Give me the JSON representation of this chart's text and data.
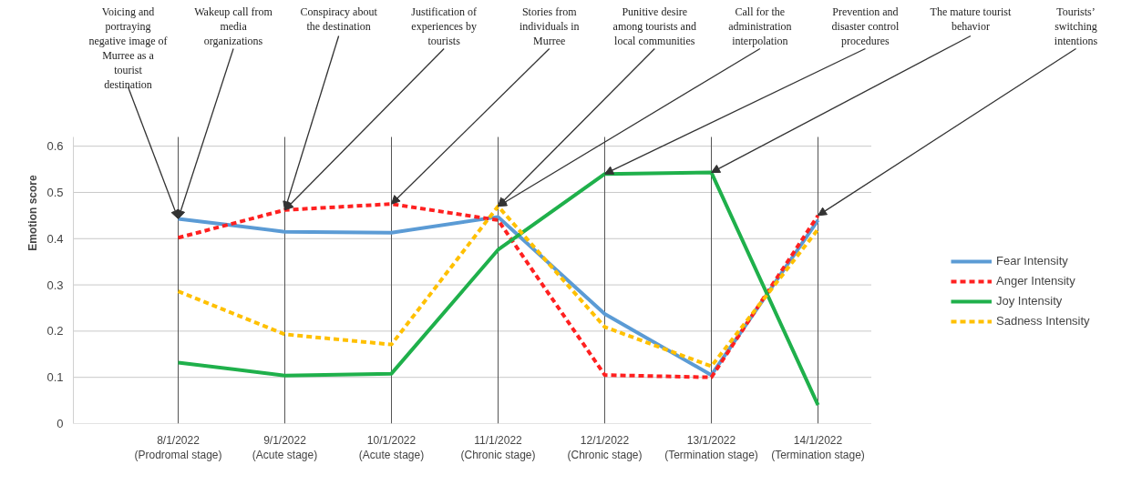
{
  "chart_data": {
    "type": "line",
    "ylabel": "Emotion score",
    "categories": [
      "8/1/2022 (Prodromal stage)",
      "9/1/2022 (Acute stage)",
      "10/1/2022(Acute stage)",
      "11/1/2022(Chronic stage)",
      "12/1/2022(Chronic stage)",
      "13/1/2022(Termination stage)",
      "14/1/2022(Termination stage)"
    ],
    "series": [
      {
        "name": "Fear Intensity",
        "color": "#5b9bd5",
        "line_style": "solid",
        "values": [
          0.443,
          0.415,
          0.413,
          0.447,
          0.237,
          0.105,
          0.44
        ]
      },
      {
        "name": "Anger Intensity",
        "color": "#ff2020",
        "line_style": "dashed",
        "values": [
          0.402,
          0.462,
          0.475,
          0.44,
          0.105,
          0.1,
          0.45
        ]
      },
      {
        "name": "Joy Intensity",
        "color": "#1fb04b",
        "line_style": "solid",
        "values": [
          0.132,
          0.104,
          0.108,
          0.376,
          0.54,
          0.543,
          0.04
        ]
      },
      {
        "name": "Sadness Intensity",
        "color": "#ffc000",
        "line_style": "dashed",
        "values": [
          0.286,
          0.193,
          0.171,
          0.47,
          0.209,
          0.124,
          0.42
        ]
      }
    ],
    "ylim": [
      0,
      0.62
    ],
    "yticks": [
      0,
      0.1,
      0.2,
      0.3,
      0.4,
      0.5,
      0.6
    ],
    "grid": true,
    "legend": "right",
    "marker": "none",
    "annotations": [
      {
        "text": "Voicing and portraying negative image of Murree as a tourist destination",
        "x": "8/1/2022 (Prodromal stage)",
        "y": 0.443
      },
      {
        "text": "Wakeup call from media organizations",
        "x": "8/1/2022 (Prodromal stage)",
        "y": 0.443
      },
      {
        "text": "Conspiracy about the destination",
        "x": "9/1/2022 (Acute stage)",
        "y": 0.462
      },
      {
        "text": "Justification of experiences by tourists",
        "x": "9/1/2022 (Acute stage)",
        "y": 0.462
      },
      {
        "text": "Stories from individuals in Murree",
        "x": "10/1/2022(Acute stage)",
        "y": 0.475
      },
      {
        "text": "Punitive desire among tourists and local communities",
        "x": "11/1/2022(Chronic stage)",
        "y": 0.47
      },
      {
        "text": "Call for the administration interpolation",
        "x": "11/1/2022(Chronic stage)",
        "y": 0.47
      },
      {
        "text": "Prevention and disaster control procedures",
        "x": "12/1/2022(Chronic stage)",
        "y": 0.54
      },
      {
        "text": "The mature tourist behavior",
        "x": "13/1/2022(Termination stage)",
        "y": 0.543
      },
      {
        "text": "Tourists’ switching intentions",
        "x": "14/1/2022(Termination stage)",
        "y": 0.45
      }
    ]
  }
}
